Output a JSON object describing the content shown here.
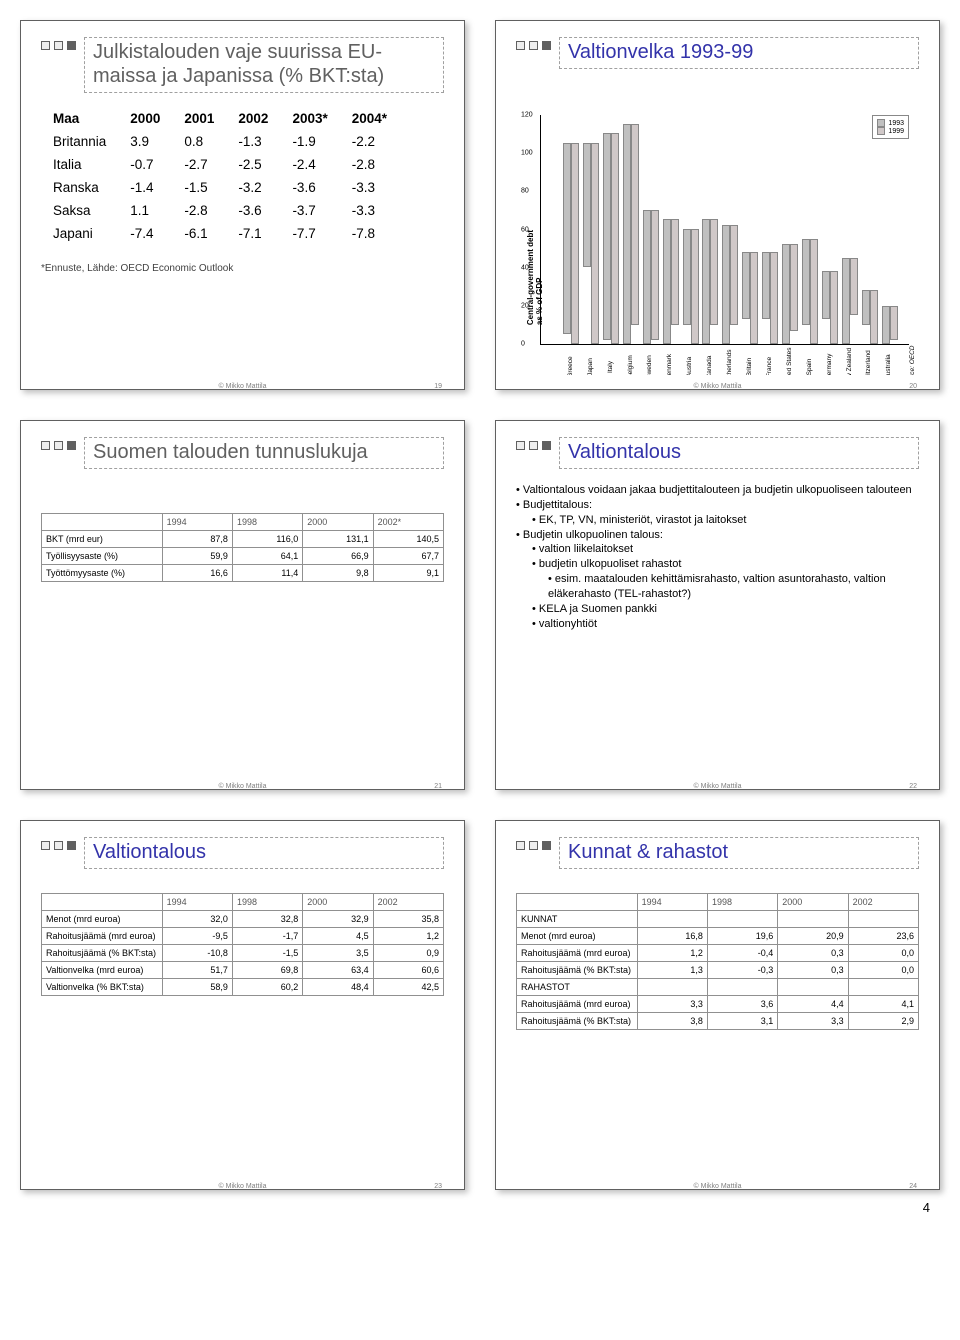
{
  "copyright": "© Mikko Mattila",
  "pageNumber": "4",
  "panels": [
    {
      "title": "Julkistalouden vaje suurissa EU-maissa ja Japanissa (% BKT:sta)",
      "titleColor": "#606060",
      "pageIdx": "19",
      "table": {
        "headers": [
          "Maa",
          "2000",
          "2001",
          "2002",
          "2003*",
          "2004*"
        ],
        "rows": [
          [
            "Britannia",
            "3.9",
            "0.8",
            "-1.3",
            "-1.9",
            "-2.2"
          ],
          [
            "Italia",
            "-0.7",
            "-2.7",
            "-2.5",
            "-2.4",
            "-2.8"
          ],
          [
            "Ranska",
            "-1.4",
            "-1.5",
            "-3.2",
            "-3.6",
            "-3.3"
          ],
          [
            "Saksa",
            "1.1",
            "-2.8",
            "-3.6",
            "-3.7",
            "-3.3"
          ],
          [
            "Japani",
            "-7.4",
            "-6.1",
            "-7.1",
            "-7.7",
            "-7.8"
          ]
        ]
      },
      "note": "*Ennuste, Lähde: OECD Economic Outlook"
    },
    {
      "title": "Valtionvelka 1993-99",
      "titleColor": "#3333aa",
      "pageIdx": "20",
      "chart": {
        "ylabel": "Central-government debt\nas % of GDP",
        "yticks": [
          "0",
          "20",
          "40",
          "60",
          "80",
          "100",
          "120"
        ],
        "ymax": 120,
        "legend": [
          "1993",
          "1999"
        ],
        "categories": [
          "Greece",
          "Japan",
          "Italy",
          "Belgium",
          "Sweden",
          "Denmark",
          "Austria",
          "Canada",
          "Netherlands",
          "Britain",
          "France",
          "United States",
          "Spain",
          "Germany",
          "New Zealand",
          "Switzerland",
          "Australia"
        ],
        "series1993": [
          100,
          65,
          108,
          115,
          70,
          65,
          50,
          65,
          62,
          35,
          35,
          52,
          45,
          25,
          45,
          18,
          20
        ],
        "series1999": [
          105,
          105,
          110,
          105,
          68,
          55,
          60,
          55,
          52,
          48,
          48,
          45,
          55,
          38,
          30,
          28,
          18
        ],
        "sourceNote": "Source: OECD",
        "bar_colors": [
          "#c0c0c0",
          "#d0c8c8"
        ]
      }
    },
    {
      "title": "Suomen talouden tunnuslukuja",
      "titleColor": "#606060",
      "pageIdx": "21",
      "table2": {
        "headers": [
          "",
          "1994",
          "1998",
          "2000",
          "2002*"
        ],
        "rows": [
          [
            "BKT (mrd eur)",
            "87,8",
            "116,0",
            "131,1",
            "140,5"
          ],
          [
            "Työllisyysaste (%)",
            "59,9",
            "64,1",
            "66,9",
            "67,7"
          ],
          [
            "Työttömyysaste (%)",
            "16,6",
            "11,4",
            "9,8",
            "9,1"
          ]
        ]
      }
    },
    {
      "title": "Valtiontalous",
      "titleColor": "#3333aa",
      "pageIdx": "22",
      "bullets": [
        {
          "t": "Valtiontalous voidaan jakaa budjettitalouteen ja budjetin ulkopuoliseen talouteen",
          "lvl": 0
        },
        {
          "t": "Budjettitalous:",
          "lvl": 0
        },
        {
          "t": "EK, TP, VN, ministeriöt, virastot ja laitokset",
          "lvl": 1
        },
        {
          "t": "Budjetin ulkopuolinen talous:",
          "lvl": 0
        },
        {
          "t": "valtion liikelaitokset",
          "lvl": 1
        },
        {
          "t": "budjetin ulkopuoliset rahastot",
          "lvl": 1
        },
        {
          "t": "esim. maatalouden kehittämisrahasto, valtion asuntorahasto, valtion eläkerahasto (TEL-rahastot?)",
          "lvl": 2
        },
        {
          "t": "KELA ja Suomen pankki",
          "lvl": 1
        },
        {
          "t": "valtionyhtiöt",
          "lvl": 1
        }
      ]
    },
    {
      "title": "Valtiontalous",
      "titleColor": "#3333aa",
      "pageIdx": "23",
      "table2": {
        "headers": [
          "",
          "1994",
          "1998",
          "2000",
          "2002"
        ],
        "rows": [
          [
            "Menot (mrd euroa)",
            "32,0",
            "32,8",
            "32,9",
            "35,8"
          ],
          [
            "Rahoitusjäämä (mrd euroa)",
            "-9,5",
            "-1,7",
            "4,5",
            "1,2"
          ],
          [
            "Rahoitusjäämä (% BKT:sta)",
            "-10,8",
            "-1,5",
            "3,5",
            "0,9"
          ],
          [
            "Valtionvelka (mrd euroa)",
            "51,7",
            "69,8",
            "63,4",
            "60,6"
          ],
          [
            "Valtionvelka (% BKT:sta)",
            "58,9",
            "60,2",
            "48,4",
            "42,5"
          ]
        ]
      }
    },
    {
      "title": "Kunnat & rahastot",
      "titleColor": "#3333aa",
      "pageIdx": "24",
      "table2": {
        "headers": [
          "",
          "1994",
          "1998",
          "2000",
          "2002"
        ],
        "rows": [
          [
            "KUNNAT",
            "",
            "",
            "",
            ""
          ],
          [
            "Menot (mrd euroa)",
            "16,8",
            "19,6",
            "20,9",
            "23,6"
          ],
          [
            "Rahoitusjäämä (mrd euroa)",
            "1,2",
            "-0,4",
            "0,3",
            "0,0"
          ],
          [
            "Rahoitusjäämä (% BKT:sta)",
            "1,3",
            "-0,3",
            "0,3",
            "0,0"
          ],
          [
            "RAHASTOT",
            "",
            "",
            "",
            ""
          ],
          [
            "Rahoitusjäämä (mrd euroa)",
            "3,3",
            "3,6",
            "4,4",
            "4,1"
          ],
          [
            "Rahoitusjäämä (% BKT:sta)",
            "3,8",
            "3,1",
            "3,3",
            "2,9"
          ]
        ]
      }
    }
  ]
}
